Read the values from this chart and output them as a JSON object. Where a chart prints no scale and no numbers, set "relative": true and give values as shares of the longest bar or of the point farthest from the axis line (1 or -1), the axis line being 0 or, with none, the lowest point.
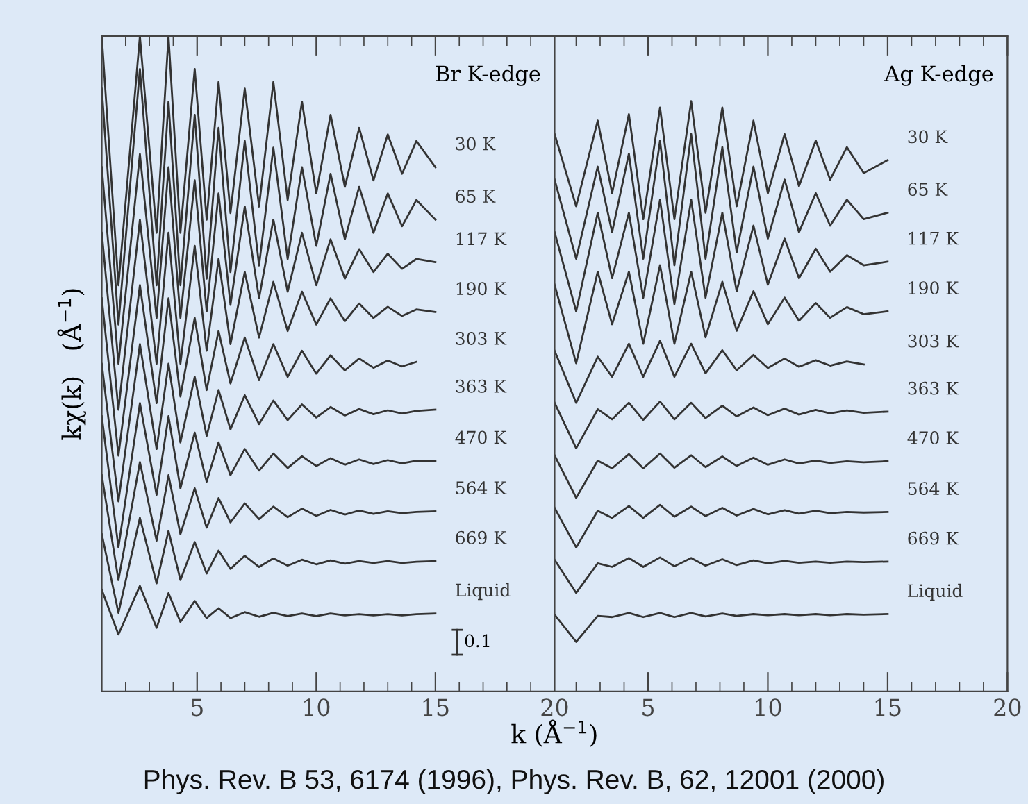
{
  "chart_data": [
    {
      "type": "line",
      "relative": true,
      "ylabel": "kχ(k)   (Å$^{−1}$)",
      "xlabel": "k (Å$^{−1}$)",
      "tick_labels": "x",
      "xlim": [
        1.0,
        20
      ],
      "xticks": [
        {
          "value": 2,
          "label": null
        },
        {
          "value": 3,
          "label": null
        },
        {
          "value": 4,
          "label": null
        },
        5,
        {
          "value": 6,
          "label": null
        },
        {
          "value": 7,
          "label": null
        },
        {
          "value": 8,
          "label": null
        },
        {
          "value": 9,
          "label": null
        },
        10,
        {
          "value": 11,
          "label": null
        },
        {
          "value": 12,
          "label": null
        },
        {
          "value": 13,
          "label": null
        },
        {
          "value": 14,
          "label": null
        },
        15,
        {
          "value": 16,
          "label": null
        },
        {
          "value": 17,
          "label": null
        },
        {
          "value": 18,
          "label": null
        },
        {
          "value": 19,
          "label": null
        },
        20
      ],
      "x": [
        1.0,
        1.7,
        2.6,
        3.3,
        3.8,
        4.3,
        4.9,
        5.4,
        5.9,
        6.4,
        7.0,
        7.6,
        8.2,
        8.8,
        9.4,
        10.0,
        10.6,
        11.2,
        11.8,
        12.4,
        13.0,
        13.6,
        14.2,
        15.0
      ],
      "annotations": [
        "Br K-edge",
        "0.1",
        "Phys. Rev. B 53, 6174 (1996), Phys. Rev. B, 62, 12001 (2000)"
      ],
      "series": [
        {
          "name": "30 K",
          "color": "#333333",
          "values": [
            1.0,
            0.62,
            1.0,
            0.7,
            1.0,
            0.7,
            0.95,
            0.72,
            0.93,
            0.73,
            0.92,
            0.74,
            0.93,
            0.75,
            0.9,
            0.76,
            0.88,
            0.77,
            0.86,
            0.78,
            0.85,
            0.79,
            0.84,
            0.8
          ]
        },
        {
          "name": "65 K",
          "color": "#333333",
          "values": [
            0.92,
            0.56,
            0.95,
            0.62,
            0.9,
            0.62,
            0.88,
            0.63,
            0.86,
            0.64,
            0.84,
            0.65,
            0.83,
            0.66,
            0.8,
            0.68,
            0.79,
            0.69,
            0.77,
            0.7,
            0.76,
            0.71,
            0.75,
            0.72
          ]
        },
        {
          "name": "117 K",
          "color": "#333333",
          "values": [
            0.8,
            0.5,
            0.82,
            0.57,
            0.8,
            0.57,
            0.78,
            0.58,
            0.76,
            0.59,
            0.74,
            0.6,
            0.72,
            0.61,
            0.7,
            0.62,
            0.69,
            0.63,
            0.675,
            0.64,
            0.668,
            0.645,
            0.66,
            0.655
          ]
        },
        {
          "name": "190 K",
          "color": "#333333",
          "values": [
            0.7,
            0.43,
            0.72,
            0.5,
            0.7,
            0.5,
            0.68,
            0.52,
            0.66,
            0.53,
            0.64,
            0.54,
            0.625,
            0.55,
            0.61,
            0.56,
            0.6,
            0.565,
            0.592,
            0.57,
            0.587,
            0.573,
            0.583,
            0.579
          ]
        },
        {
          "name": "303 K",
          "color": "#333333",
          "values": [
            0.6,
            0.36,
            0.62,
            0.44,
            0.6,
            0.45,
            0.57,
            0.46,
            0.55,
            0.47,
            0.54,
            0.475,
            0.53,
            0.48,
            0.52,
            0.485,
            0.513,
            0.49,
            0.508,
            0.494,
            0.505,
            0.496,
            0.503,
            null
          ]
        },
        {
          "name": "363 K",
          "color": "#333333",
          "values": [
            0.5,
            0.29,
            0.53,
            0.37,
            0.5,
            0.38,
            0.48,
            0.39,
            0.46,
            0.4,
            0.452,
            0.408,
            0.444,
            0.414,
            0.438,
            0.418,
            0.434,
            0.421,
            0.431,
            0.423,
            0.429,
            0.424,
            0.428,
            0.43
          ]
        },
        {
          "name": "470 K",
          "color": "#333333",
          "values": [
            0.42,
            0.22,
            0.44,
            0.3,
            0.42,
            0.31,
            0.395,
            0.32,
            0.38,
            0.33,
            0.37,
            0.337,
            0.363,
            0.341,
            0.359,
            0.344,
            0.356,
            0.346,
            0.354,
            0.347,
            0.353,
            0.348,
            0.352,
            0.352
          ]
        },
        {
          "name": "564 K",
          "color": "#333333",
          "values": [
            0.33,
            0.17,
            0.35,
            0.23,
            0.33,
            0.24,
            0.31,
            0.25,
            0.295,
            0.258,
            0.287,
            0.263,
            0.282,
            0.266,
            0.279,
            0.268,
            0.277,
            0.27,
            0.276,
            0.271,
            0.275,
            0.272,
            0.274,
            0.275
          ]
        },
        {
          "name": "669 K",
          "color": "#333333",
          "values": [
            0.24,
            0.12,
            0.265,
            0.165,
            0.245,
            0.17,
            0.228,
            0.18,
            0.215,
            0.187,
            0.207,
            0.19,
            0.203,
            0.192,
            0.201,
            0.194,
            0.2,
            0.195,
            0.199,
            0.196,
            0.199,
            0.196,
            0.198,
            0.199
          ]
        },
        {
          "name": "Liquid",
          "color": "#333333",
          "values": [
            0.155,
            0.087,
            0.161,
            0.097,
            0.15,
            0.106,
            0.138,
            0.112,
            0.127,
            0.112,
            0.121,
            0.114,
            0.12,
            0.115,
            0.119,
            0.115,
            0.119,
            0.116,
            0.118,
            0.116,
            0.118,
            0.116,
            0.118,
            0.119
          ]
        }
      ]
    },
    {
      "type": "line",
      "relative": true,
      "tick_labels": "x",
      "xlim": [
        1.1,
        20
      ],
      "xticks": [
        {
          "value": 2,
          "label": null
        },
        {
          "value": 3,
          "label": null
        },
        {
          "value": 4,
          "label": null
        },
        5,
        {
          "value": 6,
          "label": null
        },
        {
          "value": 7,
          "label": null
        },
        {
          "value": 8,
          "label": null
        },
        {
          "value": 9,
          "label": null
        },
        10,
        {
          "value": 11,
          "label": null
        },
        {
          "value": 12,
          "label": null
        },
        {
          "value": 13,
          "label": null
        },
        {
          "value": 14,
          "label": null
        },
        15,
        {
          "value": 16,
          "label": null
        },
        {
          "value": 17,
          "label": null
        },
        {
          "value": 18,
          "label": null
        },
        {
          "value": 19,
          "label": null
        },
        20
      ],
      "x": [
        1.1,
        2.0,
        2.9,
        3.5,
        4.2,
        4.8,
        5.5,
        6.1,
        6.8,
        7.4,
        8.1,
        8.7,
        9.4,
        10.0,
        10.7,
        11.3,
        12.0,
        12.6,
        13.3,
        14.0,
        15.0
      ],
      "annotations": [
        "Ag K-edge"
      ],
      "series": [
        {
          "name": "30 K",
          "color": "#333333",
          "values": [
            0.944,
            0.822,
            0.967,
            0.844,
            0.978,
            0.8,
            0.989,
            0.8,
            1.0,
            0.811,
            0.989,
            0.822,
            0.967,
            0.844,
            0.944,
            0.856,
            0.933,
            0.867,
            0.922,
            0.878,
            0.9
          ]
        },
        {
          "name": "65 K",
          "color": "#333333",
          "values": [
            0.867,
            0.733,
            0.889,
            0.778,
            0.911,
            0.733,
            0.933,
            0.722,
            0.944,
            0.733,
            0.922,
            0.744,
            0.889,
            0.767,
            0.867,
            0.778,
            0.844,
            0.789,
            0.833,
            0.8,
            0.811
          ]
        },
        {
          "name": "117 K",
          "color": "#333333",
          "values": [
            0.778,
            0.644,
            0.811,
            0.7,
            0.811,
            0.667,
            0.833,
            0.656,
            0.833,
            0.667,
            0.811,
            0.678,
            0.789,
            0.689,
            0.767,
            0.7,
            0.75,
            0.711,
            0.739,
            0.722,
            0.728
          ]
        },
        {
          "name": "190 K",
          "color": "#333333",
          "values": [
            0.689,
            0.556,
            0.711,
            0.622,
            0.711,
            0.589,
            0.722,
            0.589,
            0.711,
            0.6,
            0.694,
            0.611,
            0.678,
            0.622,
            0.667,
            0.628,
            0.658,
            0.633,
            0.651,
            0.639,
            0.644
          ]
        },
        {
          "name": "303 K",
          "color": "#333333",
          "values": [
            0.577,
            0.489,
            0.567,
            0.533,
            0.589,
            0.533,
            0.594,
            0.533,
            0.589,
            0.539,
            0.578,
            0.544,
            0.57,
            0.548,
            0.564,
            0.55,
            0.561,
            0.552,
            0.559,
            0.554,
            null
          ]
        },
        {
          "name": "363 K",
          "color": "#333333",
          "values": [
            0.489,
            0.412,
            0.478,
            0.461,
            0.489,
            0.46,
            0.491,
            0.461,
            0.489,
            0.463,
            0.484,
            0.466,
            0.481,
            0.468,
            0.479,
            0.469,
            0.477,
            0.471,
            0.476,
            0.472,
            0.474
          ]
        },
        {
          "name": "470 K",
          "color": "#333333",
          "values": [
            0.4,
            0.328,
            0.391,
            0.378,
            0.402,
            0.378,
            0.403,
            0.379,
            0.4,
            0.38,
            0.398,
            0.382,
            0.396,
            0.384,
            0.393,
            0.386,
            0.391,
            0.387,
            0.39,
            0.388,
            0.39
          ]
        },
        {
          "name": "564 K",
          "color": "#333333",
          "values": [
            0.311,
            0.244,
            0.306,
            0.294,
            0.314,
            0.294,
            0.316,
            0.296,
            0.313,
            0.297,
            0.311,
            0.298,
            0.309,
            0.3,
            0.307,
            0.301,
            0.306,
            0.302,
            0.304,
            0.303,
            0.304
          ]
        },
        {
          "name": "669 K",
          "color": "#333333",
          "values": [
            0.223,
            0.167,
            0.217,
            0.211,
            0.226,
            0.211,
            0.227,
            0.212,
            0.226,
            0.213,
            0.224,
            0.214,
            0.222,
            0.217,
            0.221,
            0.218,
            0.22,
            0.218,
            0.22,
            0.219,
            0.22
          ]
        },
        {
          "name": "Liquid",
          "color": "#333333",
          "values": [
            0.13,
            0.084,
            0.128,
            0.126,
            0.133,
            0.126,
            0.133,
            0.126,
            0.133,
            0.127,
            0.132,
            0.128,
            0.131,
            0.129,
            0.131,
            0.129,
            0.131,
            0.129,
            0.131,
            0.13,
            0.131
          ]
        }
      ]
    }
  ]
}
